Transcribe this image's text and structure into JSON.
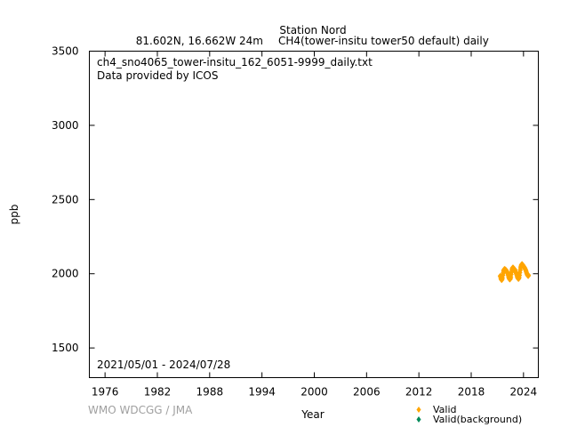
{
  "header": {
    "station": "Station Nord",
    "location": "81.602N, 16.662W 24m",
    "parameter": "CH4(tower-insitu tower50 default) daily"
  },
  "annotations": {
    "filename": "ch4_sno4065_tower-insitu_162_6051-9999_daily.txt",
    "provider": "Data provided by ICOS",
    "period": "2021/05/01 - 2024/07/28"
  },
  "footer": {
    "watermark": "WMO WDCGG / JMA"
  },
  "colors": {
    "valid": "#ffa500",
    "valid_background": "#008b5a",
    "axis": "#000000",
    "watermark": "#a0a0a0"
  },
  "chart_data": {
    "type": "scatter",
    "xlabel": "Year",
    "ylabel": "ppb",
    "xlim": [
      1974.2,
      2025.7
    ],
    "ylim": [
      1300,
      3500
    ],
    "xticks": [
      "1976",
      "1982",
      "1988",
      "1994",
      "2000",
      "2006",
      "2012",
      "2018",
      "2024"
    ],
    "yticks": [
      "1500",
      "2000",
      "2500",
      "3000",
      "3500"
    ],
    "grid": false,
    "legend_position": "bottom-right",
    "series": [
      {
        "name": "Valid",
        "color": "#ffa500",
        "x": [
          2021.33,
          2021.38,
          2021.42,
          2021.46,
          2021.5,
          2021.54,
          2021.58,
          2021.63,
          2021.67,
          2021.71,
          2021.75,
          2021.79,
          2021.83,
          2021.88,
          2021.92,
          2021.96,
          2022.0,
          2022.04,
          2022.08,
          2022.13,
          2022.17,
          2022.21,
          2022.25,
          2022.29,
          2022.33,
          2022.38,
          2022.42,
          2022.46,
          2022.5,
          2022.54,
          2022.58,
          2022.63,
          2022.67,
          2022.71,
          2022.75,
          2022.79,
          2022.83,
          2022.88,
          2022.92,
          2022.96,
          2023.0,
          2023.04,
          2023.08,
          2023.13,
          2023.17,
          2023.21,
          2023.25,
          2023.29,
          2023.33,
          2023.38,
          2023.42,
          2023.46,
          2023.5,
          2023.54,
          2023.58,
          2023.63,
          2023.67,
          2023.71,
          2023.75,
          2023.79,
          2023.83,
          2023.88,
          2023.92,
          2023.96,
          2024.0,
          2024.04,
          2024.08,
          2024.13,
          2024.17,
          2024.21,
          2024.25,
          2024.29,
          2024.33,
          2024.38,
          2024.42,
          2024.46,
          2024.5,
          2024.54,
          2024.57
        ],
        "y": [
          1985,
          1975,
          1965,
          1960,
          1958,
          1962,
          1972,
          1990,
          2005,
          2018,
          2025,
          2030,
          2032,
          2030,
          2028,
          2022,
          2025,
          2020,
          2015,
          2010,
          2005,
          1998,
          1990,
          1980,
          1972,
          1965,
          1962,
          1963,
          1968,
          1978,
          1995,
          2012,
          2025,
          2035,
          2040,
          2042,
          2040,
          2035,
          2032,
          2030,
          2028,
          2022,
          2015,
          2008,
          2002,
          1995,
          1988,
          1980,
          1972,
          1968,
          1965,
          1968,
          1975,
          1990,
          2008,
          2025,
          2040,
          2050,
          2058,
          2062,
          2065,
          2062,
          2058,
          2055,
          2050,
          2048,
          2045,
          2040,
          2035,
          2030,
          2025,
          2018,
          2010,
          2002,
          1995,
          1990,
          1988,
          1985,
          1990
        ]
      },
      {
        "name": "Valid(background)",
        "color": "#008b5a",
        "x": [],
        "y": []
      }
    ]
  }
}
